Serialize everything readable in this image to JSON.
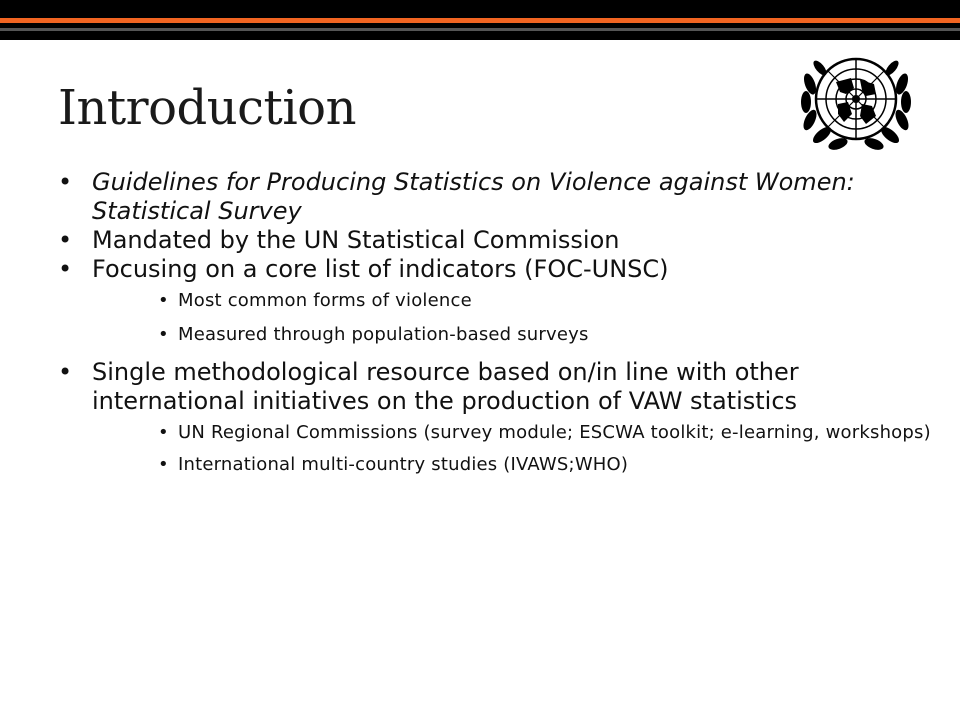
{
  "slide": {
    "title": "Introduction",
    "accent_color": "#f26522",
    "logo_icon": "un-emblem-icon",
    "bullets": [
      {
        "text": "Guidelines for Producing Statistics on Violence against Women: Statistical Survey",
        "italic": true
      },
      {
        "text": "Mandated by the UN Statistical Commission"
      },
      {
        "text": "Focusing on a core list of indicators (FOC-UNSC)",
        "sub": [
          "Most common forms of violence",
          "Measured through population-based surveys"
        ]
      },
      {
        "text": "Single methodological resource based on/in line with other international initiatives on the production of VAW statistics",
        "sub": [
          "UN Regional Commissions (survey module; ESCWA toolkit; e-learning, workshops)",
          "International multi-country studies (IVAWS;WHO)"
        ]
      }
    ]
  }
}
